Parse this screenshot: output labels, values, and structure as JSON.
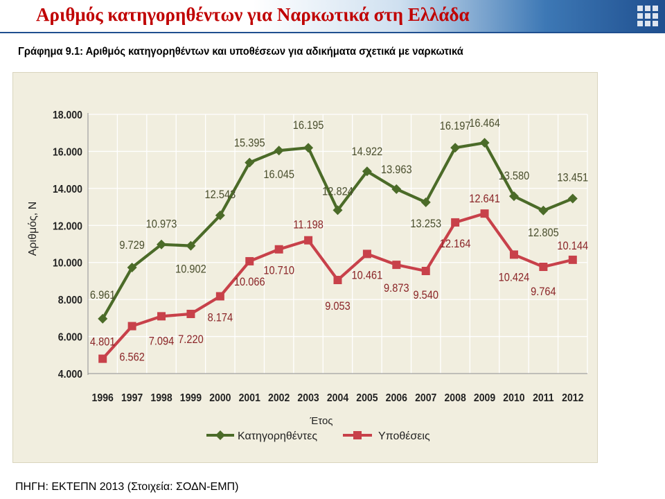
{
  "header": {
    "title": "Αριθμός κατηγορηθέντων για Ναρκωτικά στη Ελλάδα"
  },
  "subtitle": "Γράφημα 9.1: Αριθμός κατηγορηθέντων και υποθέσεων για αδικήματα σχετικά με ναρκωτικά",
  "footer": {
    "source": "ΠΗΓΗ: ΕΚΤΕΠΝ 2013 (Στοιχεία: ΣΟΔΝ-ΕΜΠ)"
  },
  "colors": {
    "accused": "#4b6b28",
    "cases": "#c8414a",
    "accused_label": "#4a4f2e",
    "cases_label": "#8a2427",
    "title": "#c00000",
    "plot_bg": "#f1eedf"
  },
  "chart_data": {
    "type": "line",
    "title": "Γράφημα 9.1: Αριθμός κατηγορηθέντων και υποθέσεων για αδικήματα σχετικά με ναρκωτικά",
    "xlabel": "Έτος",
    "ylabel": "Αριθμός, Ν",
    "ylim": [
      4000,
      18000
    ],
    "yticks": [
      {
        "value": 4000,
        "label": "4.000"
      },
      {
        "value": 6000,
        "label": "6.000"
      },
      {
        "value": 8000,
        "label": "8.000"
      },
      {
        "value": 10000,
        "label": "10.000"
      },
      {
        "value": 12000,
        "label": "12.000"
      },
      {
        "value": 14000,
        "label": "14.000"
      },
      {
        "value": 16000,
        "label": "16.000"
      },
      {
        "value": 18000,
        "label": "18.000"
      }
    ],
    "grid": true,
    "legend": "bottom",
    "categories": [
      "1996",
      "1997",
      "1998",
      "1999",
      "2000",
      "2001",
      "2002",
      "2003",
      "2004",
      "2005",
      "2006",
      "2007",
      "2008",
      "2009",
      "2010",
      "2011",
      "2012"
    ],
    "series": [
      {
        "name": "Κατηγορηθέντες",
        "color": "#4b6b28",
        "marker": "diamond",
        "values": [
          6961,
          9729,
          10973,
          10902,
          12543,
          15395,
          16045,
          16195,
          12824,
          14922,
          13963,
          13253,
          16197,
          16464,
          13580,
          12805,
          13451
        ],
        "labels": [
          "6.961",
          "9.729",
          "10.973",
          "10.902",
          "12.543",
          "15.395",
          "16.045",
          "16.195",
          "12.824",
          "14.922",
          "13.963",
          "13.253",
          "16.197",
          "16.464",
          "13.580",
          "12.805",
          "13.451"
        ]
      },
      {
        "name": "Υποθέσεις",
        "color": "#c8414a",
        "marker": "square",
        "values": [
          4801,
          6562,
          7094,
          7220,
          8174,
          10066,
          10710,
          11198,
          9053,
          10461,
          9873,
          9540,
          12164,
          12641,
          10424,
          9764,
          10144
        ],
        "labels": [
          "4.801",
          "6.562",
          "7.094",
          "7.220",
          "8.174",
          "10.066",
          "10.710",
          "11.198",
          "9.053",
          "10.461",
          "9.873",
          "9.540",
          "12.164",
          "12.641",
          "10.424",
          "9.764",
          "10.144"
        ]
      }
    ]
  }
}
